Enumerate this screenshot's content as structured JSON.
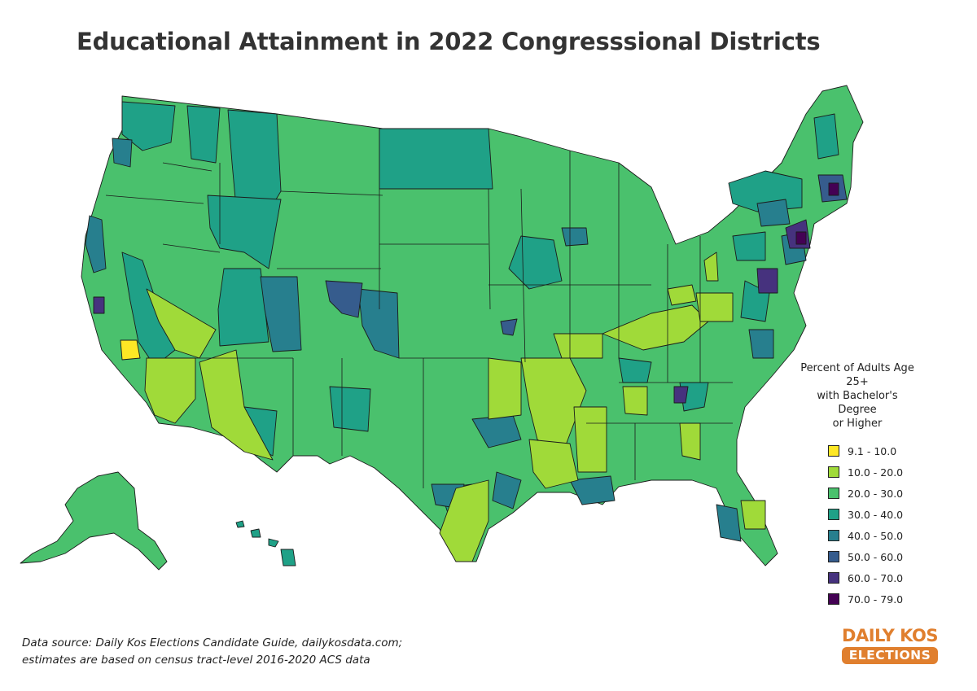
{
  "title": "Educational Attainment in 2022 Congresssional Districts",
  "legend": {
    "title_lines": [
      "Percent of Adults Age 25+",
      "with Bachelor's Degree",
      "or Higher"
    ],
    "bins": [
      {
        "label": "9.1 - 10.0",
        "color": "#fde725"
      },
      {
        "label": "10.0 - 20.0",
        "color": "#a0da39"
      },
      {
        "label": "20.0 - 30.0",
        "color": "#4ac16d"
      },
      {
        "label": "30.0 - 40.0",
        "color": "#1fa187"
      },
      {
        "label": "40.0 - 50.0",
        "color": "#277f8e"
      },
      {
        "label": "50.0 - 60.0",
        "color": "#365c8d"
      },
      {
        "label": "60.0 - 70.0",
        "color": "#46327e"
      },
      {
        "label": "70.0 - 79.0",
        "color": "#440154"
      }
    ]
  },
  "source_lines": [
    "Data source: Daily Kos Elections Candidate Guide, dailykosdata.com;",
    "estimates are based on census tract-level 2016-2020 ACS data"
  ],
  "logo": {
    "top": "DAILY KOS",
    "bottom": "ELECTIONS"
  }
}
